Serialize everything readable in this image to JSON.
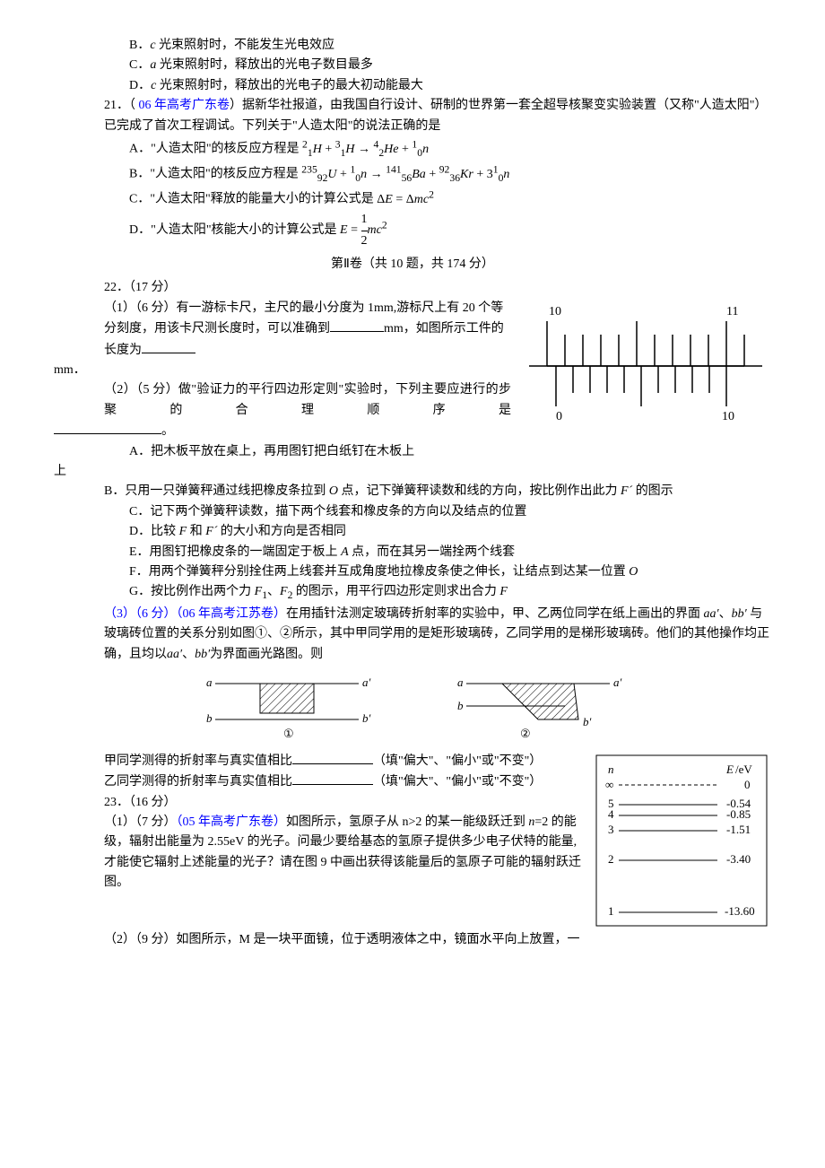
{
  "opt_B": "B．",
  "opt_B_mid_italic": "c",
  "opt_B_rest": " 光束照射时，不能发生光电效应",
  "opt_C": "C．",
  "opt_C_mid_italic": "a",
  "opt_C_rest": " 光束照射时，释放出的光电子数目最多",
  "opt_D": "D．",
  "opt_D_mid_italic": "c",
  "opt_D_rest": " 光束照射时，释放出的光电子的最大初动能最大",
  "q21_pre": "21．（",
  "q21_blue": " 06 年高考广东卷",
  "q21_post": "）据新华社报道，由我国自行设计、研制的世界第一套全超导核聚变实验装置（又称\"人造太阳\"）已完成了首次工程调试。下列关于\"人造太阳\"的说法正确的是",
  "q21_A": "A．\"人造太阳\"的核反应方程是 ",
  "q21_B": "B．\"人造太阳\"的核反应方程是 ",
  "q21_C": "C．\"人造太阳\"释放的能量大小的计算公式是 ",
  "q21_D": "D．\"人造太阳\"核能大小的计算公式是 ",
  "section2": "第Ⅱ卷（共 10 题，共 174 分）",
  "q22": "22．（17 分）",
  "q22_1_text_a": "（1）（6 分）有一游标卡尺，主尺的最小分度为 1mm,游标尺上有 20 个等分刻度，用该卡尺测长度时，可以准确到",
  "q22_1_text_b": "mm，如图所示工件的长度为",
  "q22_1_text_c": "mm．",
  "vernier": {
    "main_left_label": "10",
    "main_right_label": "11",
    "vernier_left_label": "0",
    "vernier_right_label": "10"
  },
  "q22_2_a": "（2）（5 分）做\"验证力的平行四边形定则\"实验时，下列主要应进行的步聚的合理顺序是",
  "q22_2_b": "。",
  "q22_2_A": "A．把木板平放在桌上，再用图钉把白纸钉在木板上",
  "q22_2_B_pre": "B．只用一只弹簧秤通过线把橡皮条拉到 ",
  "q22_2_B_O": "O",
  "q22_2_B_post": " 点，记下弹簧秤读数和线的方向，按比例作出此力 ",
  "q22_2_B_F": "F´",
  "q22_2_B_end": " 的图示",
  "q22_2_C": "C．记下两个弹簧秤读数，描下两个线套和橡皮条的方向以及结点的位置",
  "q22_2_D_pre": "D．比较 ",
  "q22_2_D_F": "F",
  "q22_2_D_and": " 和 ",
  "q22_2_D_F2": "F´",
  "q22_2_D_post": " 的大小和方向是否相同",
  "q22_2_E_pre": "E．用图钉把橡皮条的一端固定于板上 ",
  "q22_2_E_A": "A",
  "q22_2_E_post": " 点，而在其另一端拴两个线套",
  "q22_2_F_pre": "F．用两个弹簧秤分别拴住两上线套并互成角度地拉橡皮条使之伸长，让结点到达某一位置 ",
  "q22_2_F_O": "O",
  "q22_2_G_pre": "G．按比例作出两个力 ",
  "q22_2_G_F1": "F",
  "q22_2_G_sub1": "1",
  "q22_2_G_sep": "、",
  "q22_2_G_F2": "F",
  "q22_2_G_sub2": "2",
  "q22_2_G_post": " 的图示，用平行四边形定则求出合力 ",
  "q22_2_G_F": "F",
  "q22_3_pre": "（3）（6 分）",
  "q22_3_blue": "（06 年高考江苏卷）",
  "q22_3_text1": "在用插针法测定玻璃砖折射率的实验中，甲、乙两位同学在纸上画出的界面 ",
  "aa": "aa′",
  "sep1": "、",
  "bb": "bb′",
  "q22_3_text2": " 与玻璃砖位置的关系分别如图①、②所示，其中甲同学用的是矩形玻璃砖，乙同学用的是梯形玻璃砖。他们的其他操作均正确，且均以",
  "q22_3_text3": "为界面画光路图。则",
  "glass_labels": {
    "a": "a",
    "ap": "a′",
    "b": "b",
    "bp": "b′",
    "one": "①",
    "two": "②"
  },
  "jia_pre": "甲同学测得的折射率与真实值相比",
  "fill_hint": "（填\"偏大\"、\"偏小\"或\"不变\"）",
  "yi_pre": "乙同学测得的折射率与真实值相比",
  "q23": "23．（16 分）",
  "q23_1_pre": "（1）（7 分）",
  "q23_1_blue": "（05 年高考广东卷）",
  "q23_1_text": "如图所示，氢原子从 n>2 的某一能级跃迁到 ",
  "q23_1_n2": "n",
  "q23_1_eq2": "=2 的能级，辐射出能量为 2.55eV 的光子。问最少要给基态的氢原子提供多少电子伏特的能量,才能使它辐射上述能量的光子？请在图 9 中画出获得该能量后的氢原子可能的辐射跃迁图。",
  "energy": {
    "n_label": "n",
    "E_label": "E/eV",
    "levels": [
      {
        "n": "∞",
        "E": "0",
        "dashed": true
      },
      {
        "n": "5",
        "E": "-0.54"
      },
      {
        "n": "4",
        "E": "-0.85"
      },
      {
        "n": "3",
        "E": "-1.51"
      },
      {
        "n": "2",
        "E": "-3.40"
      },
      {
        "n": "1",
        "E": "-13.60"
      }
    ]
  },
  "q23_2": "（2）（9 分）如图所示，M 是一块平面镜，位于透明液体之中，镜面水平向上放置，一"
}
